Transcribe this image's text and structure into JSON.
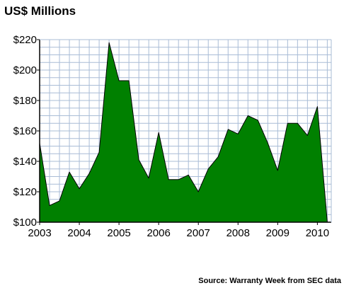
{
  "chart_data": {
    "type": "area",
    "title": "US$ Millions",
    "xlabel": "",
    "ylabel": "",
    "source": "Source: Warranty Week from SEC data",
    "xlim": [
      2003,
      2010.35
    ],
    "ylim": [
      100,
      220
    ],
    "y_ticks": [
      100,
      120,
      140,
      160,
      180,
      200,
      220
    ],
    "y_tick_labels": [
      "$100",
      "$120",
      "$140",
      "$160",
      "$180",
      "$200",
      "$220"
    ],
    "x_ticks": [
      2003,
      2004,
      2005,
      2006,
      2007,
      2008,
      2009,
      2010
    ],
    "x_tick_labels": [
      "2003",
      "2004",
      "2005",
      "2006",
      "2007",
      "2008",
      "2009",
      "2010"
    ],
    "grid": true,
    "colors": {
      "fill": "#008000",
      "stroke": "#000000",
      "grid": "#a9bcd6",
      "background": "#ffffff"
    },
    "series": [
      {
        "x": [
          2003.0,
          2003.25,
          2003.5,
          2003.75,
          2004.0,
          2004.25,
          2004.5,
          2004.75,
          2005.0,
          2005.25,
          2005.5,
          2005.75,
          2006.0,
          2006.25,
          2006.5,
          2006.75,
          2007.0,
          2007.25,
          2007.5,
          2007.75,
          2008.0,
          2008.25,
          2008.5,
          2008.75,
          2009.0,
          2009.25,
          2009.5,
          2009.75,
          2010.0,
          2010.25
        ],
        "values": [
          152,
          111,
          114,
          133,
          122,
          132,
          146,
          218,
          193,
          193,
          141,
          129,
          159,
          128,
          128,
          131,
          120,
          135,
          143,
          161,
          158,
          170,
          167,
          152,
          134,
          165,
          165,
          157,
          176,
          100
        ]
      }
    ]
  }
}
